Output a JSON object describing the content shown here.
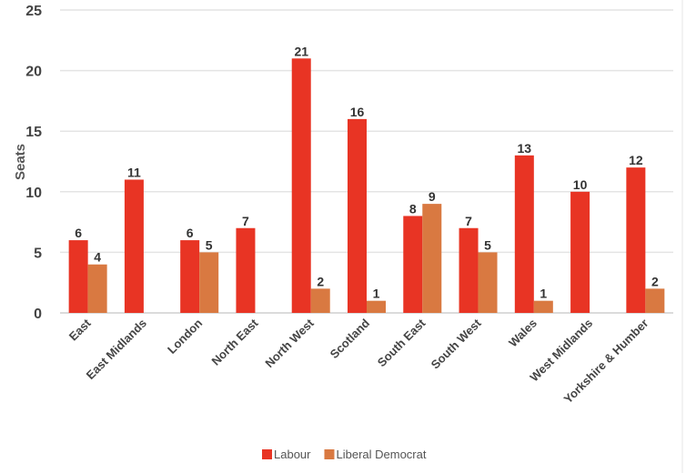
{
  "chart_data": {
    "type": "bar",
    "title": "",
    "xlabel": "",
    "ylabel": "Seats",
    "ylim": [
      0,
      25
    ],
    "yticks": [
      0,
      5,
      10,
      15,
      20,
      25
    ],
    "grid": true,
    "legend_position": "bottom",
    "categories": [
      "East",
      "East Midlands",
      "London",
      "North East",
      "North West",
      "Scotland",
      "South East",
      "South West",
      "Wales",
      "West Midlands",
      "Yorkshire & Humber"
    ],
    "series": [
      {
        "name": "Labour",
        "color": "#e83424",
        "values": [
          6,
          11,
          6,
          7,
          21,
          16,
          8,
          7,
          13,
          10,
          12
        ]
      },
      {
        "name": "Liberal Democrat",
        "color": "#d97941",
        "values": [
          4,
          null,
          5,
          null,
          2,
          1,
          9,
          5,
          1,
          null,
          2
        ]
      }
    ]
  }
}
